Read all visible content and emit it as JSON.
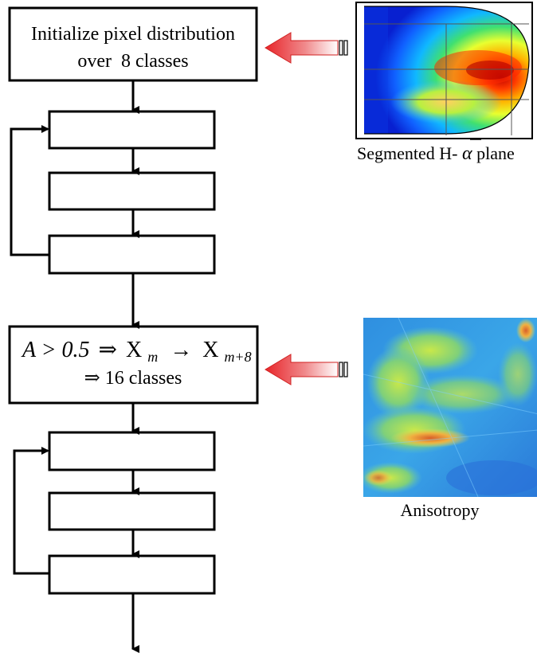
{
  "flowchart": {
    "init_box": {
      "line1": "Initialize pixel distribution",
      "line2": "over  8 classes"
    },
    "anisotropy_box": {
      "formula_lhs": "A > 0.5",
      "implies": "⇒",
      "x_base": "X",
      "sub_m": "m",
      "arrow": "→",
      "sub_m8": "m+8",
      "line2": "⇒ 16 classes"
    }
  },
  "images": {
    "h_alpha": {
      "caption_prefix": "Segmented H-",
      "caption_symbol": "α",
      "caption_suffix": "plane"
    },
    "anisotropy": {
      "caption": "Anisotropy"
    }
  },
  "colors": {
    "arrow_red": "#e8252a",
    "line": "#000000"
  }
}
